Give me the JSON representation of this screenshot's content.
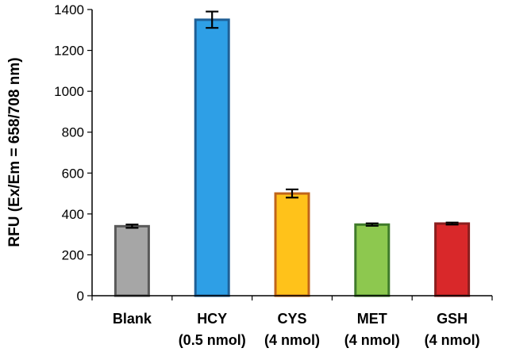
{
  "chart_data": {
    "type": "bar",
    "title": "",
    "xlabel": "",
    "ylabel": "RFU (Ex/Em = 658/708 nm)",
    "ylim": [
      0,
      1400
    ],
    "yticks": [
      0,
      200,
      400,
      600,
      800,
      1000,
      1200,
      1400
    ],
    "grid": false,
    "categories": [
      {
        "line1": "Blank",
        "line2": ""
      },
      {
        "line1": "HCY",
        "line2": "(0.5 nmol)"
      },
      {
        "line1": "CYS",
        "line2": "(4 nmol)"
      },
      {
        "line1": "MET",
        "line2": "(4 nmol)"
      },
      {
        "line1": "GSH",
        "line2": "(4 nmol)"
      }
    ],
    "values": [
      340,
      1350,
      500,
      348,
      353
    ],
    "errors": [
      8,
      40,
      20,
      6,
      5
    ],
    "colors": [
      {
        "fill": "#a6a6a6",
        "stroke": "#595959"
      },
      {
        "fill": "#2e9fe6",
        "stroke": "#1f5f96"
      },
      {
        "fill": "#ffc21a",
        "stroke": "#c0641a"
      },
      {
        "fill": "#8dc84f",
        "stroke": "#3f7a2a"
      },
      {
        "fill": "#d9282a",
        "stroke": "#8a1e1e"
      }
    ]
  }
}
